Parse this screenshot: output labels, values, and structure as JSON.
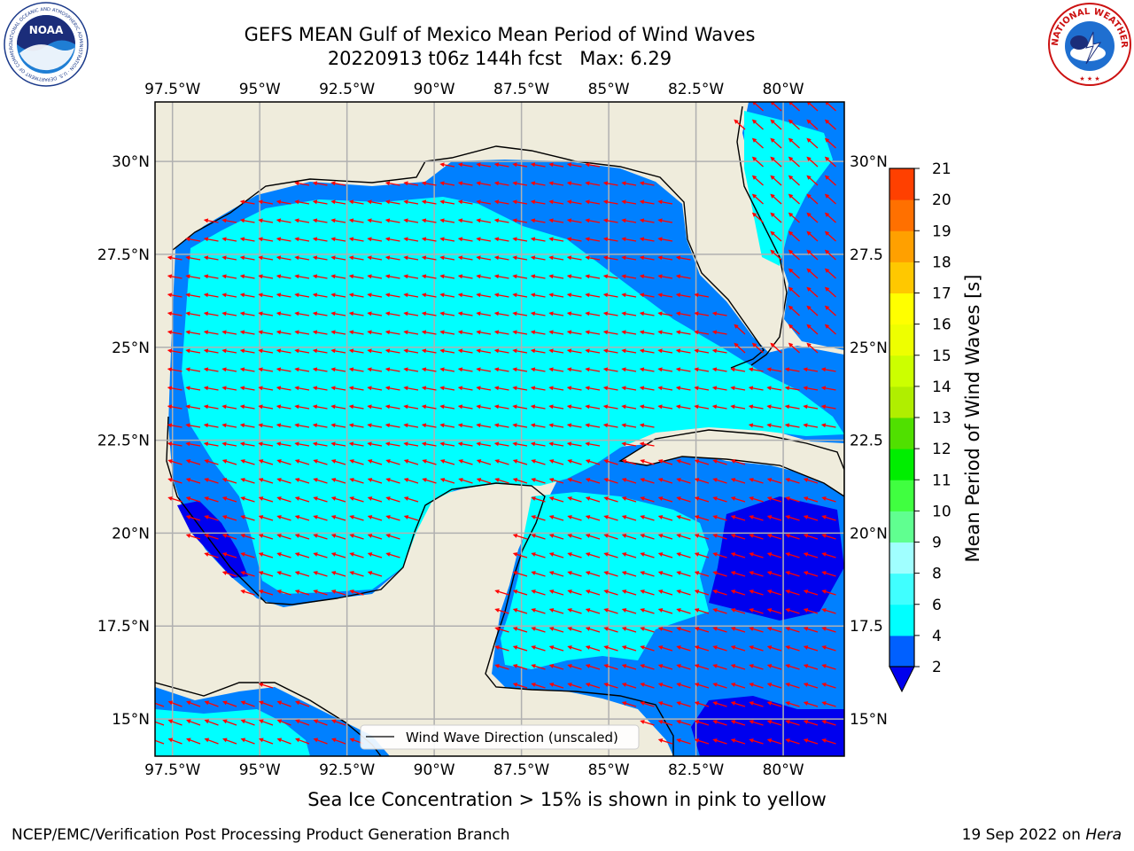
{
  "title": {
    "line1": "GEFS MEAN Gulf of Mexico Mean Period of Wind Waves",
    "line2": "20220913 t06z 144h fcst   Max: 6.29"
  },
  "logos": {
    "noaa_text": "NOAA",
    "noaa_ring": "NATIONAL OCEANIC AND ATMOSPHERIC ADMINISTRATION · U.S. DEPARTMENT OF COMMERCE",
    "nws_ring": "NATIONAL WEATHER SERVICE"
  },
  "map": {
    "lon_ticks": [
      "97.5°W",
      "95°W",
      "92.5°W",
      "90°W",
      "87.5°W",
      "85°W",
      "82.5°W",
      "80°W"
    ],
    "lat_ticks_left": [
      "30°N",
      "27.5°N",
      "25°N",
      "22.5°N",
      "20°N",
      "17.5°N",
      "15°N"
    ],
    "lat_ticks_right": [
      "30°N",
      "27.5",
      "25°N",
      "22.5",
      "20°N",
      "17.5",
      "15°N"
    ],
    "lon_values": [
      -97.5,
      -95,
      -92.5,
      -90,
      -87.5,
      -85,
      -82.5,
      -80
    ],
    "lat_values": [
      30,
      27.5,
      25,
      22.5,
      20,
      17.5,
      15
    ],
    "lon_range": [
      -98,
      -78.25
    ],
    "lat_range": [
      14,
      31.6
    ],
    "land_color": "#efecdc",
    "grid": true,
    "legend_label": "Wind Wave Direction (unscaled)",
    "arrow_color": "#ff0000",
    "dominant_direction": "toward west / west-southwest"
  },
  "colorbar": {
    "label": "Mean Period of Wind Waves [s]",
    "ticks": [
      "2",
      "4",
      "6",
      "8",
      "9",
      "10",
      "11",
      "12",
      "13",
      "14",
      "15",
      "16",
      "17",
      "18",
      "19",
      "20",
      "21"
    ],
    "colors": [
      "#0060ff",
      "#00ffff",
      "#40ffff",
      "#a0ffff",
      "#60ff90",
      "#40ff40",
      "#00ee00",
      "#50e000",
      "#b0ee00",
      "#ccff00",
      "#eeff00",
      "#ffff00",
      "#ffc800",
      "#ffa000",
      "#ff7000",
      "#ff4000",
      "#ff0000"
    ],
    "under_color": "#0000ee"
  },
  "subtitle": "Sea Ice Concentration > 15% is shown in pink to yellow",
  "footer": {
    "left": "NCEP/EMC/Verification Post Processing Product Generation Branch",
    "right_prefix": "19 Sep 2022 on ",
    "right_host": "Hera"
  }
}
